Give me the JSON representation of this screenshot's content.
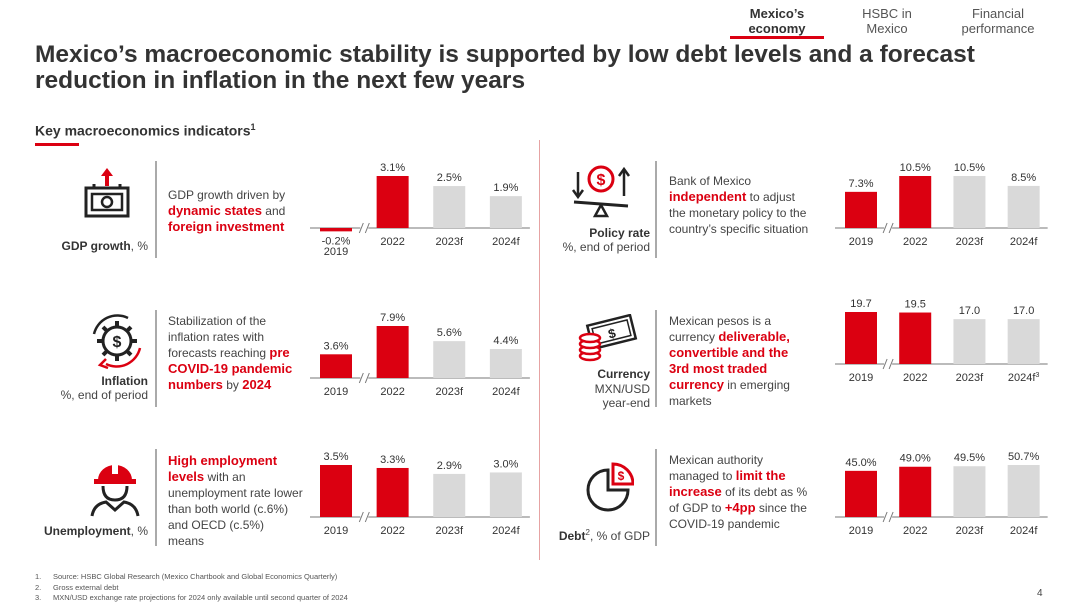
{
  "nav": {
    "tabs": [
      {
        "label": "Mexico’s economy",
        "line1": "Mexico’s",
        "line2": "economy"
      },
      {
        "label": "HSBC in Mexico",
        "line1": "HSBC in",
        "line2": "Mexico"
      },
      {
        "label": "Financial performance",
        "line1": "Financial",
        "line2": "performance"
      }
    ],
    "active_index": 0
  },
  "title": "Mexico’s macroeconomic stability is supported by low debt levels and a forecast reduction in inflation in the next few years",
  "section": {
    "label": "Key macroeconomics indicators",
    "footnote_ref": "1"
  },
  "colors": {
    "accent": "#db0011",
    "forecast_gray": "#d9d9d9",
    "text": "#333333"
  },
  "indicators": [
    {
      "id": "gdp",
      "icon": "money-growth-icon",
      "label_bold": "GDP growth",
      "label_rest": ", %",
      "desc": [
        {
          "t": "GDP growth driven by ",
          "hl": false
        },
        {
          "t": "dynamic states",
          "hl": true
        },
        {
          "t": " and ",
          "hl": false
        },
        {
          "t": "foreign investment",
          "hl": true
        }
      ]
    },
    {
      "id": "inflation",
      "icon": "gear-dollar-cycle-icon",
      "label_bold": "Inflation",
      "label_rest": "%, end of period",
      "desc": [
        {
          "t": "Stabilization of the inflation rates with forecasts reaching ",
          "hl": false
        },
        {
          "t": "pre COVID-19 pandemic numbers",
          "hl": true
        },
        {
          "t": " by ",
          "hl": false
        },
        {
          "t": "2024",
          "hl": true
        }
      ]
    },
    {
      "id": "unemployment",
      "icon": "worker-helmet-icon",
      "label_bold": "Unemployment",
      "label_rest": ", %",
      "desc": [
        {
          "t": "High employment levels",
          "hl": true
        },
        {
          "t": " with an unemployment rate lower than both world (c.6%) and OECD (c.5%)  means",
          "hl": false
        }
      ]
    },
    {
      "id": "policy",
      "icon": "scale-dollar-icon",
      "label_bold": "Policy rate",
      "label_rest": "%, end of period",
      "desc": [
        {
          "t": "Bank of Mexico ",
          "hl": false
        },
        {
          "t": "independent",
          "hl": true
        },
        {
          "t": " to adjust the monetary policy to the country’s specific situation",
          "hl": false
        }
      ]
    },
    {
      "id": "currency",
      "icon": "banknotes-coins-icon",
      "label_bold": "Currency",
      "label_rest": "MXN/USD year-end",
      "desc": [
        {
          "t": "Mexican pesos is a currency ",
          "hl": false
        },
        {
          "t": "deliverable, convertible and the 3rd most traded currency",
          "hl": true
        },
        {
          "t": " in emerging markets",
          "hl": false
        }
      ]
    },
    {
      "id": "debt",
      "icon": "pie-dollar-icon",
      "label_bold": "Debt",
      "label_sup": "2",
      "label_rest": ", % of GDP",
      "desc": [
        {
          "t": "Mexican authority managed to ",
          "hl": false
        },
        {
          "t": "limit the increase",
          "hl": true
        },
        {
          "t": " of its debt as % of GDP to ",
          "hl": false
        },
        {
          "t": "+4pp",
          "hl": true
        },
        {
          "t": " since the COVID-19 pandemic",
          "hl": false
        }
      ]
    }
  ],
  "chart_data": [
    {
      "id": "gdp",
      "type": "bar",
      "categories": [
        "2019",
        "2022",
        "2023f",
        "2024f"
      ],
      "values": [
        -0.2,
        3.1,
        2.5,
        1.9
      ],
      "labels": [
        "-0.2%",
        "3.1%",
        "2.5%",
        "1.9%"
      ],
      "forecast": [
        false,
        false,
        true,
        true
      ],
      "axis_break": true
    },
    {
      "id": "inflation",
      "type": "bar",
      "categories": [
        "2019",
        "2022",
        "2023f",
        "2024f"
      ],
      "values": [
        3.6,
        7.9,
        5.6,
        4.4
      ],
      "labels": [
        "3.6%",
        "7.9%",
        "5.6%",
        "4.4%"
      ],
      "forecast": [
        false,
        false,
        true,
        true
      ],
      "axis_break": true
    },
    {
      "id": "unemployment",
      "type": "bar",
      "categories": [
        "2019",
        "2022",
        "2023f",
        "2024f"
      ],
      "values": [
        3.5,
        3.3,
        2.9,
        3.0
      ],
      "labels": [
        "3.5%",
        "3.3%",
        "2.9%",
        "3.0%"
      ],
      "forecast": [
        false,
        false,
        true,
        true
      ],
      "axis_break": true
    },
    {
      "id": "policy",
      "type": "bar",
      "categories": [
        "2019",
        "2022",
        "2023f",
        "2024f"
      ],
      "values": [
        7.3,
        10.5,
        10.5,
        8.5
      ],
      "labels": [
        "7.3%",
        "10.5%",
        "10.5%",
        "8.5%"
      ],
      "forecast": [
        false,
        false,
        true,
        true
      ],
      "axis_break": true
    },
    {
      "id": "currency",
      "type": "bar",
      "categories": [
        "2019",
        "2022",
        "2023f",
        "2024f"
      ],
      "category_sup": [
        "",
        "",
        "",
        "3"
      ],
      "values": [
        19.7,
        19.5,
        17.0,
        17.0
      ],
      "labels": [
        "19.7",
        "19.5",
        "17.0",
        "17.0"
      ],
      "forecast": [
        false,
        false,
        true,
        true
      ],
      "axis_break": true
    },
    {
      "id": "debt",
      "type": "bar",
      "categories": [
        "2019",
        "2022",
        "2023f",
        "2024f"
      ],
      "values": [
        45.0,
        49.0,
        49.5,
        50.7
      ],
      "labels": [
        "45.0%",
        "49.0%",
        "49.5%",
        "50.7%"
      ],
      "forecast": [
        false,
        false,
        true,
        true
      ],
      "axis_break": true
    }
  ],
  "footnotes": [
    {
      "n": "1.",
      "t": "Source: HSBC Global Research (Mexico Chartbook and Global Economics Quarterly)"
    },
    {
      "n": "2.",
      "t": "Gross external debt"
    },
    {
      "n": "3.",
      "t": "MXN/USD exchange rate projections for 2024 only available until second quarter of 2024"
    }
  ],
  "page_number": "4"
}
